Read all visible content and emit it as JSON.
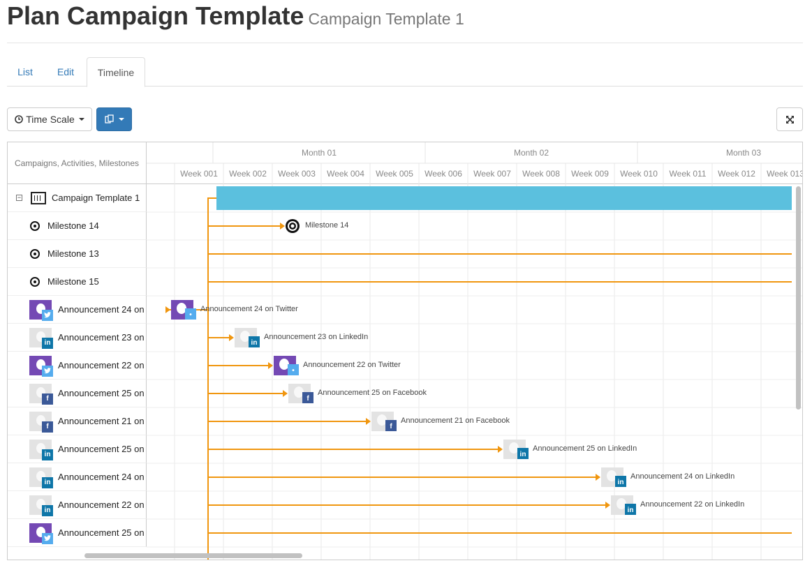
{
  "header": {
    "title": "Plan Campaign Template",
    "subtitle": "Campaign Template 1"
  },
  "tabs": [
    {
      "label": "List"
    },
    {
      "label": "Edit"
    },
    {
      "label": "Timeline",
      "active": true
    }
  ],
  "toolbar": {
    "time_scale_label": "Time Scale",
    "copy_icon": "copy-icon",
    "fullscreen_icon": "expand-icon"
  },
  "gantt": {
    "grid_header": "Campaigns, Activities, Milestones",
    "months": [
      "Month 01",
      "Month 02",
      "Month 03"
    ],
    "weeks": [
      "Week 001",
      "Week 002",
      "Week 003",
      "Week 004",
      "Week 005",
      "Week 006",
      "Week 007",
      "Week 008",
      "Week 009",
      "Week 010",
      "Week 011",
      "Week 012",
      "Week 013"
    ],
    "campaign": {
      "name": "Campaign Template 1",
      "bar_color": "#5bc0de",
      "start_week": 1,
      "end_week": 13
    },
    "rows": [
      {
        "type": "milestone",
        "name": "Milestone 14",
        "timeline_label": "Milestone 14",
        "week": 3.4
      },
      {
        "type": "milestone",
        "name": "Milestone 13",
        "timeline_label": "",
        "week": null
      },
      {
        "type": "milestone",
        "name": "Milestone 15",
        "timeline_label": "",
        "week": null
      },
      {
        "type": "activity",
        "name": "Announcement 24 on",
        "timeline_label": "Announcement 24 on Twitter",
        "network": "twitter",
        "avatar": "purple",
        "week": 1.0
      },
      {
        "type": "activity",
        "name": "Announcement 23 on",
        "timeline_label": "Announcement 23 on LinkedIn",
        "network": "linkedin",
        "avatar": "grey",
        "week": 2.3
      },
      {
        "type": "activity",
        "name": "Announcement 22 on",
        "timeline_label": "Announcement 22 on Twitter",
        "network": "twitter",
        "avatar": "purple",
        "week": 3.1
      },
      {
        "type": "activity",
        "name": "Announcement 25 on",
        "timeline_label": "Announcement 25 on Facebook",
        "network": "facebook",
        "avatar": "grey",
        "week": 3.4
      },
      {
        "type": "activity",
        "name": "Announcement 21 on",
        "timeline_label": "Announcement 21 on Facebook",
        "network": "facebook",
        "avatar": "grey",
        "week": 5.1
      },
      {
        "type": "activity",
        "name": "Announcement 25 on",
        "timeline_label": "Announcement 25 on LinkedIn",
        "network": "linkedin",
        "avatar": "grey",
        "week": 7.8
      },
      {
        "type": "activity",
        "name": "Announcement 24 on",
        "timeline_label": "Announcement 24 on LinkedIn",
        "network": "linkedin",
        "avatar": "grey",
        "week": 9.8
      },
      {
        "type": "activity",
        "name": "Announcement 22 on",
        "timeline_label": "Announcement 22 on LinkedIn",
        "network": "linkedin",
        "avatar": "grey",
        "week": 10.0
      },
      {
        "type": "activity",
        "name": "Announcement 25 on",
        "timeline_label": "",
        "network": "twitter",
        "avatar": "purple",
        "week": null
      }
    ],
    "colors": {
      "dependency": "#f0960f",
      "grid_line": "#e8e8e8",
      "header_text": "#888888"
    }
  }
}
